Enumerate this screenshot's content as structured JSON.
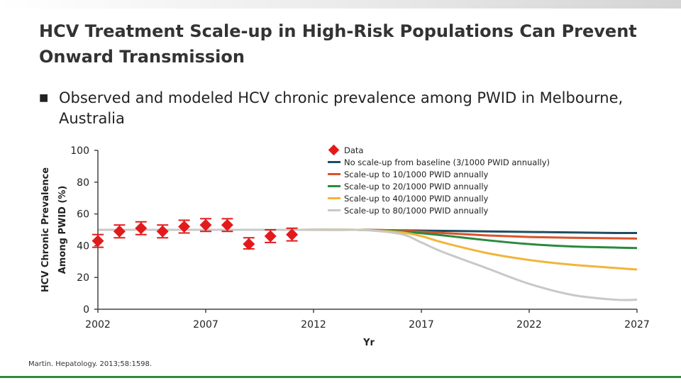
{
  "slide": {
    "title": "HCV Treatment Scale-up in High-Risk Populations Can Prevent Onward Transmission",
    "bullet": "Observed and modeled HCV chronic prevalence among PWID in Melbourne, Australia",
    "citation": "Martin. Hepatology. 2013;58:1598."
  },
  "chart_data": {
    "type": "line",
    "xlabel": "Yr",
    "ylabel_line1": "HCV Chronic Prevalence",
    "ylabel_line2": "Among PWID (%)",
    "xlim": [
      2002,
      2027
    ],
    "ylim": [
      0,
      100
    ],
    "x_ticks": [
      "2002",
      "2007",
      "2012",
      "2017",
      "2022",
      "2027"
    ],
    "y_ticks": [
      "0",
      "20",
      "40",
      "60",
      "80",
      "100"
    ],
    "legend_position": "top-right",
    "data_series": {
      "name": "Data",
      "color": "#e31a1c",
      "points": [
        {
          "x": 2002,
          "y": 43,
          "low": 39,
          "high": 47
        },
        {
          "x": 2003,
          "y": 49,
          "low": 45,
          "high": 53
        },
        {
          "x": 2004,
          "y": 51,
          "low": 47,
          "high": 55
        },
        {
          "x": 2005,
          "y": 49,
          "low": 45,
          "high": 53
        },
        {
          "x": 2006,
          "y": 52,
          "low": 48,
          "high": 56
        },
        {
          "x": 2007,
          "y": 53,
          "low": 49,
          "high": 57
        },
        {
          "x": 2008,
          "y": 53,
          "low": 49,
          "high": 57
        },
        {
          "x": 2009,
          "y": 41,
          "low": 38,
          "high": 45
        },
        {
          "x": 2010,
          "y": 46,
          "low": 42,
          "high": 50
        },
        {
          "x": 2011,
          "y": 47,
          "low": 43,
          "high": 51
        }
      ]
    },
    "series": [
      {
        "name": "No scale-up from baseline (3/1000 PWID annually)",
        "color": "#1f4e5f",
        "x": [
          2002,
          2005,
          2008,
          2011,
          2014,
          2017,
          2020,
          2023,
          2026,
          2027
        ],
        "y": [
          50,
          50,
          50,
          50,
          50,
          49.5,
          49,
          48.5,
          48,
          48
        ]
      },
      {
        "name": "Scale-up to 10/1000 PWID annually",
        "color": "#d9532c",
        "x": [
          2002,
          2005,
          2008,
          2011,
          2014,
          2016,
          2018,
          2020,
          2022,
          2024,
          2027
        ],
        "y": [
          50,
          50,
          50,
          50,
          50,
          49.5,
          48,
          46.5,
          45.5,
          45,
          44.5
        ]
      },
      {
        "name": "Scale-up to 20/1000 PWID annually",
        "color": "#2a8a3e",
        "x": [
          2002,
          2005,
          2008,
          2011,
          2014,
          2016,
          2018,
          2020,
          2022,
          2024,
          2027
        ],
        "y": [
          50,
          50,
          50,
          50,
          50,
          49,
          46.5,
          43.5,
          41,
          39.5,
          38.5
        ]
      },
      {
        "name": "Scale-up to 40/1000 PWID annually",
        "color": "#f2b43a",
        "x": [
          2002,
          2005,
          2008,
          2011,
          2014,
          2016,
          2017,
          2018,
          2020,
          2022,
          2024,
          2027
        ],
        "y": [
          50,
          50,
          50,
          50,
          50,
          48.5,
          46,
          42,
          35.5,
          31,
          28,
          25
        ]
      },
      {
        "name": "Scale-up to 80/1000 PWID annually",
        "color": "#c8c8c8",
        "x": [
          2002,
          2005,
          2008,
          2011,
          2014,
          2016,
          2017,
          2018,
          2020,
          2022,
          2024,
          2026,
          2027
        ],
        "y": [
          50,
          50,
          50,
          50,
          50,
          47.5,
          42,
          36,
          26,
          16,
          9,
          6,
          6
        ]
      }
    ]
  }
}
